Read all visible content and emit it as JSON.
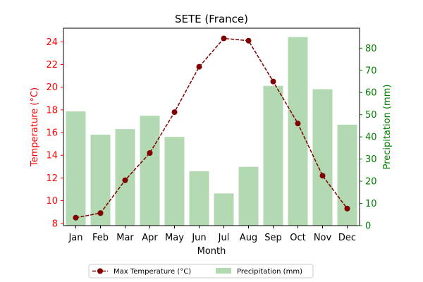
{
  "chart_data": {
    "type": "bar+line",
    "title": "SETE (France)",
    "xlabel": "Month",
    "ylabel_left": "Temperature (°C)",
    "ylabel_right": "Precipitation (mm)",
    "categories": [
      "Jan",
      "Feb",
      "Mar",
      "Apr",
      "May",
      "Jun",
      "Jul",
      "Aug",
      "Sep",
      "Oct",
      "Nov",
      "Dec"
    ],
    "series": [
      {
        "name": "Max Temperature (°C)",
        "kind": "line",
        "axis": "left",
        "color": "#7f0000",
        "values": [
          8.5,
          8.9,
          11.8,
          14.2,
          17.8,
          21.8,
          24.3,
          24.1,
          20.5,
          16.8,
          12.2,
          9.3
        ]
      },
      {
        "name": "Precipitation (mm)",
        "kind": "bar",
        "axis": "right",
        "color": "#b2d9b2",
        "values": [
          51.5,
          41,
          43.5,
          49.5,
          40,
          24.5,
          14.5,
          26.5,
          63,
          85,
          61.5,
          45.5
        ]
      }
    ],
    "ylim_left": [
      7.8,
      25.2
    ],
    "yticks_left": [
      8,
      10,
      12,
      14,
      16,
      18,
      20,
      22,
      24
    ],
    "ylim_right": [
      0,
      89
    ],
    "yticks_right": [
      0,
      10,
      20,
      30,
      40,
      50,
      60,
      70,
      80
    ],
    "left_axis_color": "#ff0000",
    "right_axis_color": "#008000",
    "grid": false,
    "legend_placement": "bottom-center"
  }
}
